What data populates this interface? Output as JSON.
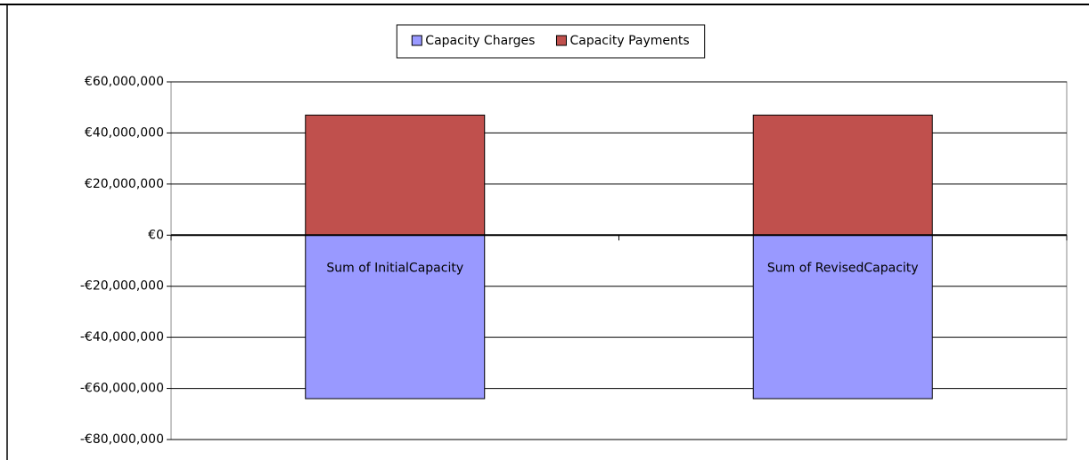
{
  "chart_data": {
    "type": "bar",
    "stacked": true,
    "categories": [
      "Sum of InitialCapacity",
      "Sum of RevisedCapacity"
    ],
    "series": [
      {
        "name": "Capacity Charges",
        "color": "#9999ff",
        "values": [
          -64000000,
          -64000000
        ]
      },
      {
        "name": "Capacity Payments",
        "color": "#c0504d",
        "values": [
          47000000,
          47000000
        ]
      }
    ],
    "ylim": [
      -80000000,
      60000000
    ],
    "yticks": [
      {
        "value": -80000000,
        "label": "-€80,000,000"
      },
      {
        "value": -60000000,
        "label": "-€60,000,000"
      },
      {
        "value": -40000000,
        "label": "-€40,000,000"
      },
      {
        "value": -20000000,
        "label": "-€20,000,000"
      },
      {
        "value": 0,
        "label": "€0"
      },
      {
        "value": 20000000,
        "label": "€20,000,000"
      },
      {
        "value": 40000000,
        "label": "€40,000,000"
      },
      {
        "value": 60000000,
        "label": "€60,000,000"
      }
    ],
    "grid": true,
    "legend": "top"
  }
}
